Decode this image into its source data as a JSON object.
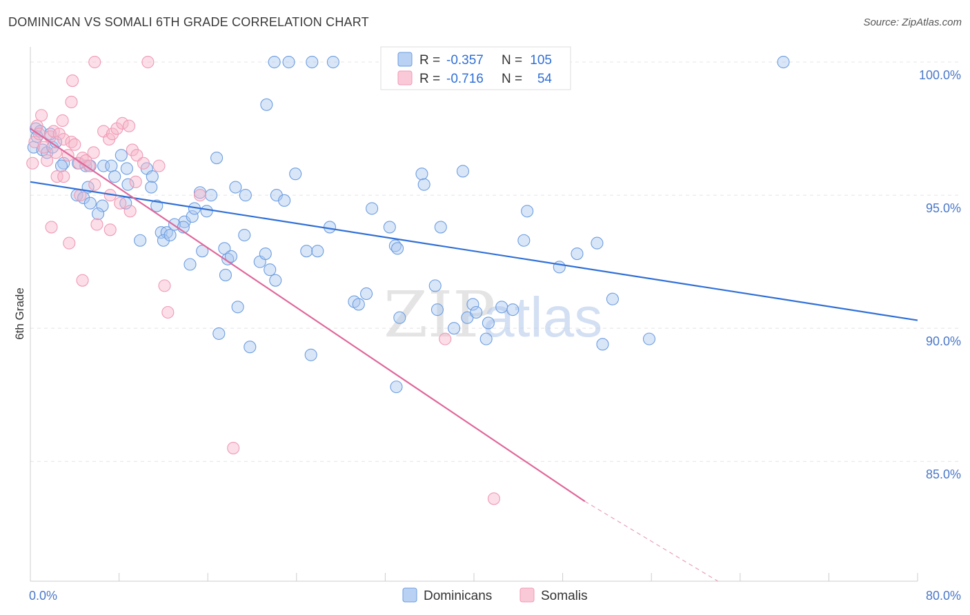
{
  "header": {
    "title": "DOMINICAN VS SOMALI 6TH GRADE CORRELATION CHART",
    "source": "Source: ZipAtlas.com"
  },
  "watermark": {
    "zip": "ZIP",
    "atlas": "atlas"
  },
  "legend": {
    "r_label": "R =",
    "n_label": "N =",
    "rows": [
      {
        "r": "-0.357",
        "n": "105",
        "color": "#6c9de0"
      },
      {
        "r": "-0.716",
        "n": "54",
        "color": "#f09ab5"
      }
    ]
  },
  "chart_data": {
    "type": "scatter",
    "title": "DOMINICAN VS SOMALI 6TH GRADE CORRELATION CHART",
    "ylabel": "6th Grade",
    "xlim": [
      0,
      80
    ],
    "ylim": [
      80.5,
      100.7
    ],
    "x_tick_labels": [
      "0.0%",
      "80.0%"
    ],
    "y_ticks": [
      {
        "value": 100,
        "label": "100.0%"
      },
      {
        "value": 95,
        "label": "95.0%"
      },
      {
        "value": 90,
        "label": "90.0%"
      },
      {
        "value": 85,
        "label": "85.0%"
      }
    ],
    "grid": true,
    "series": [
      {
        "name": "Dominicans",
        "color": "#6c9de0",
        "trend": {
          "x0": 0,
          "y0": 95.5,
          "x1": 80,
          "y1": 90.3
        },
        "points": [
          [
            0.3,
            96.8
          ],
          [
            0.5,
            97.5
          ],
          [
            0.9,
            97.4
          ],
          [
            1.1,
            96.7
          ],
          [
            1.5,
            96.6
          ],
          [
            2.0,
            96.8
          ],
          [
            2.3,
            97.0
          ],
          [
            0.6,
            97.2
          ],
          [
            1.8,
            97.3
          ],
          [
            3.0,
            96.2
          ],
          [
            2.8,
            96.1
          ],
          [
            4.3,
            96.2
          ],
          [
            5.0,
            96.1
          ],
          [
            5.4,
            96.1
          ],
          [
            6.6,
            96.1
          ],
          [
            7.3,
            96.1
          ],
          [
            8.2,
            96.5
          ],
          [
            8.7,
            96.0
          ],
          [
            10.5,
            96.0
          ],
          [
            11.0,
            95.7
          ],
          [
            7.6,
            95.7
          ],
          [
            5.2,
            95.3
          ],
          [
            4.2,
            95.0
          ],
          [
            4.8,
            94.9
          ],
          [
            5.4,
            94.7
          ],
          [
            6.5,
            94.6
          ],
          [
            6.1,
            94.3
          ],
          [
            8.8,
            95.4
          ],
          [
            8.6,
            94.7
          ],
          [
            10.9,
            95.3
          ],
          [
            11.4,
            94.6
          ],
          [
            9.9,
            93.3
          ],
          [
            11.8,
            93.6
          ],
          [
            12.3,
            93.6
          ],
          [
            12.0,
            93.3
          ],
          [
            12.6,
            93.5
          ],
          [
            13.9,
            94.0
          ],
          [
            14.6,
            94.2
          ],
          [
            13.0,
            93.9
          ],
          [
            13.8,
            93.8
          ],
          [
            14.8,
            94.5
          ],
          [
            15.3,
            95.1
          ],
          [
            16.3,
            95.0
          ],
          [
            15.9,
            94.4
          ],
          [
            16.8,
            96.4
          ],
          [
            15.5,
            92.9
          ],
          [
            14.4,
            92.4
          ],
          [
            17.5,
            93.0
          ],
          [
            17.8,
            92.6
          ],
          [
            18.1,
            92.7
          ],
          [
            17.6,
            92.0
          ],
          [
            19.3,
            93.5
          ],
          [
            18.5,
            95.3
          ],
          [
            19.4,
            95.0
          ],
          [
            20.7,
            92.5
          ],
          [
            21.2,
            92.8
          ],
          [
            21.6,
            92.2
          ],
          [
            22.2,
            95.0
          ],
          [
            22.9,
            94.8
          ],
          [
            22.1,
            91.8
          ],
          [
            18.7,
            90.8
          ],
          [
            17.0,
            89.8
          ],
          [
            19.8,
            89.3
          ],
          [
            21.3,
            98.4
          ],
          [
            22.0,
            100.0
          ],
          [
            23.3,
            100.0
          ],
          [
            25.4,
            100.0
          ],
          [
            27.3,
            100.0
          ],
          [
            23.9,
            95.8
          ],
          [
            24.9,
            92.9
          ],
          [
            25.9,
            92.9
          ],
          [
            27.0,
            93.8
          ],
          [
            29.2,
            91.0
          ],
          [
            29.6,
            90.9
          ],
          [
            30.3,
            91.3
          ],
          [
            30.8,
            94.5
          ],
          [
            32.4,
            93.8
          ],
          [
            32.9,
            93.1
          ],
          [
            33.1,
            93.0
          ],
          [
            33.3,
            90.4
          ],
          [
            35.3,
            95.8
          ],
          [
            35.5,
            95.4
          ],
          [
            36.5,
            91.6
          ],
          [
            36.7,
            90.7
          ],
          [
            37.0,
            93.8
          ],
          [
            38.2,
            90.0
          ],
          [
            39.0,
            95.9
          ],
          [
            39.4,
            90.4
          ],
          [
            39.9,
            90.9
          ],
          [
            40.2,
            90.6
          ],
          [
            41.1,
            89.6
          ],
          [
            42.5,
            90.8
          ],
          [
            43.5,
            90.7
          ],
          [
            44.8,
            94.4
          ],
          [
            44.5,
            93.3
          ],
          [
            47.7,
            92.3
          ],
          [
            49.3,
            92.8
          ],
          [
            51.1,
            93.2
          ],
          [
            51.6,
            89.4
          ],
          [
            52.5,
            91.1
          ],
          [
            55.8,
            89.6
          ],
          [
            67.9,
            100.0
          ],
          [
            25.3,
            89.0
          ],
          [
            33.0,
            87.8
          ],
          [
            41.3,
            90.2
          ]
        ]
      },
      {
        "name": "Somalis",
        "color": "#f09ab5",
        "trend": {
          "x0": 0,
          "y0": 97.5,
          "x1": 50.0,
          "y1": 83.5,
          "dash_to_x": 62,
          "dash_to_y": 80.5
        },
        "points": [
          [
            0.2,
            96.2
          ],
          [
            0.4,
            97.0
          ],
          [
            0.6,
            97.6
          ],
          [
            1.0,
            98.0
          ],
          [
            1.2,
            96.8
          ],
          [
            1.5,
            96.3
          ],
          [
            1.8,
            97.2
          ],
          [
            2.1,
            97.4
          ],
          [
            2.3,
            96.6
          ],
          [
            2.6,
            97.3
          ],
          [
            2.9,
            97.8
          ],
          [
            3.0,
            97.1
          ],
          [
            3.4,
            96.5
          ],
          [
            3.7,
            97.0
          ],
          [
            4.0,
            96.9
          ],
          [
            4.4,
            96.2
          ],
          [
            4.7,
            96.4
          ],
          [
            5.0,
            96.3
          ],
          [
            5.3,
            96.1
          ],
          [
            3.8,
            99.3
          ],
          [
            3.7,
            98.5
          ],
          [
            5.7,
            96.6
          ],
          [
            6.6,
            97.4
          ],
          [
            7.1,
            97.1
          ],
          [
            7.4,
            97.3
          ],
          [
            7.8,
            97.5
          ],
          [
            8.3,
            97.7
          ],
          [
            8.9,
            97.6
          ],
          [
            9.2,
            96.7
          ],
          [
            9.6,
            96.5
          ],
          [
            10.2,
            96.2
          ],
          [
            11.6,
            96.1
          ],
          [
            2.4,
            95.7
          ],
          [
            3.0,
            95.7
          ],
          [
            4.5,
            95.0
          ],
          [
            5.8,
            95.4
          ],
          [
            7.2,
            95.0
          ],
          [
            8.1,
            94.7
          ],
          [
            9.0,
            94.4
          ],
          [
            9.5,
            95.5
          ],
          [
            6.0,
            93.9
          ],
          [
            7.2,
            93.7
          ],
          [
            1.9,
            93.8
          ],
          [
            3.5,
            93.2
          ],
          [
            4.7,
            91.8
          ],
          [
            12.1,
            91.6
          ],
          [
            12.4,
            90.6
          ],
          [
            15.3,
            95.0
          ],
          [
            5.8,
            100.0
          ],
          [
            10.6,
            100.0
          ],
          [
            18.3,
            85.5
          ],
          [
            37.4,
            89.6
          ],
          [
            41.8,
            83.6
          ],
          [
            0.8,
            97.3
          ]
        ]
      }
    ]
  },
  "bottom_legend": [
    {
      "label": "Dominicans",
      "color": "#6c9de0"
    },
    {
      "label": "Somalis",
      "color": "#f09ab5"
    }
  ]
}
